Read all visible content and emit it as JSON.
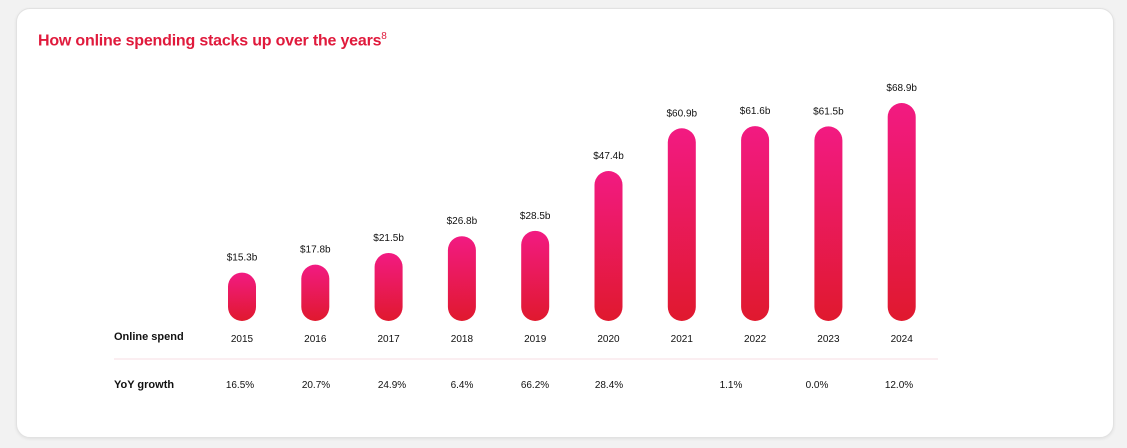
{
  "chart_data": {
    "type": "bar",
    "title": "How online spending stacks up over the years",
    "title_footnote": "8",
    "row_labels": {
      "spend": "Online spend",
      "growth": "YoY growth"
    },
    "categories": [
      "2015",
      "2016",
      "2017",
      "2018",
      "2019",
      "2020",
      "2021",
      "2022",
      "2023",
      "2024"
    ],
    "values": [
      15.3,
      17.8,
      21.5,
      26.8,
      28.5,
      47.4,
      60.9,
      61.6,
      61.5,
      68.9
    ],
    "value_labels": [
      "$15.3b",
      "$17.8b",
      "$21.5b",
      "$26.8b",
      "$28.5b",
      "$47.4b",
      "$60.9b",
      "$61.6b",
      "$61.5b",
      "$68.9b"
    ],
    "yoy_growth": [
      "16.5%",
      "20.7%",
      "24.9%",
      "6.4%",
      "66.2%",
      "28.4%",
      "1.1%",
      "0.0%",
      "12.0%"
    ],
    "unit": "$ billions",
    "ylim": [
      0,
      70
    ],
    "grid": false,
    "colors": {
      "bar_top": "#f21a82",
      "bar_bottom": "#e0192e",
      "title": "#e01a3c",
      "divider": "#f7dde3"
    }
  }
}
